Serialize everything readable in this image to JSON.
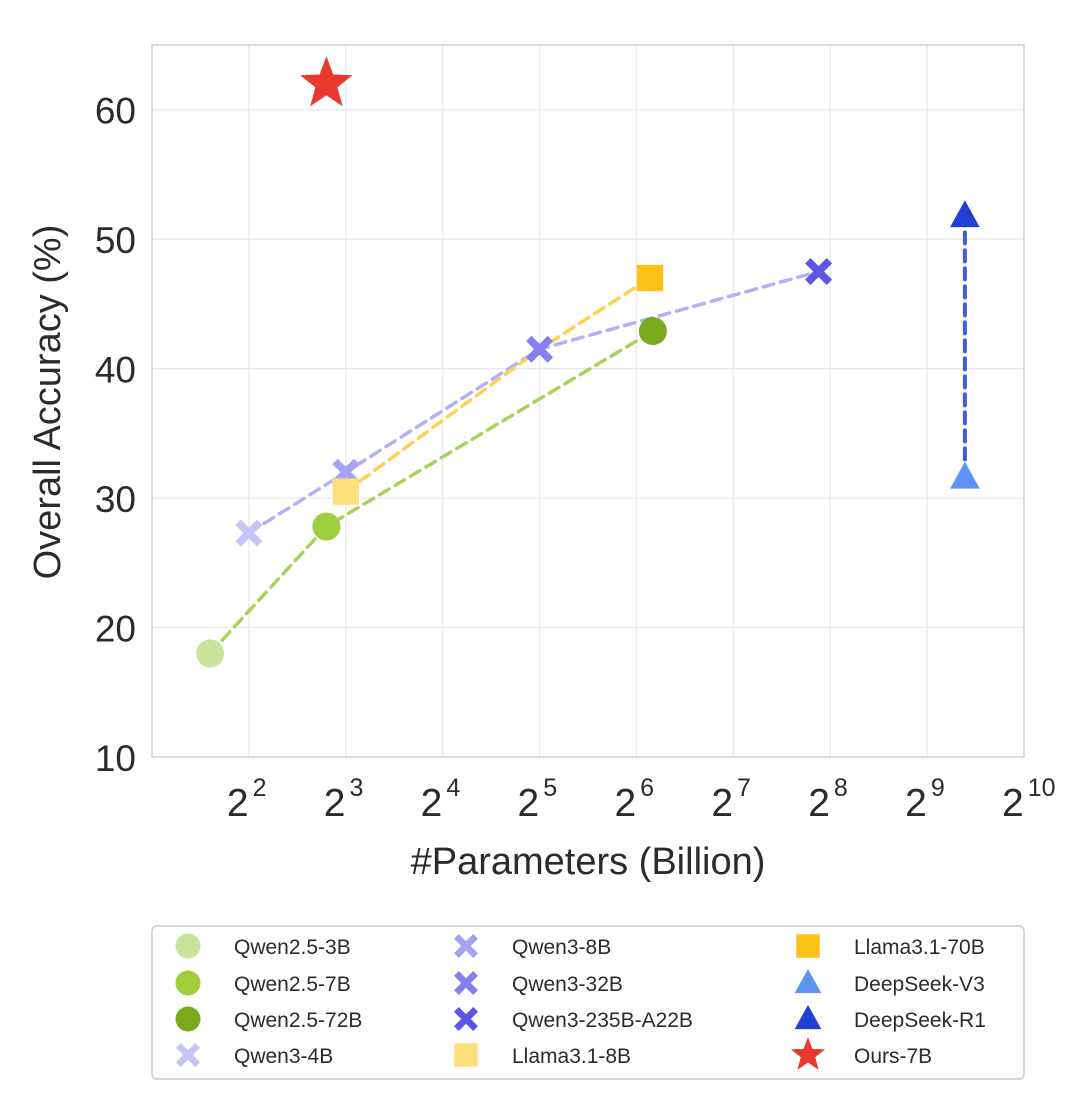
{
  "chart_data": {
    "type": "scatter",
    "title": "",
    "xlabel": "#Parameters (Billion)",
    "ylabel": "Overall Accuracy (%)",
    "x_scale": "log2",
    "x_exponent_range": [
      1,
      10
    ],
    "ylim": [
      10,
      65
    ],
    "y_ticks": [
      10,
      20,
      30,
      40,
      50,
      60
    ],
    "x_ticks": [
      {
        "base": "2",
        "exp": "2",
        "value": 2
      },
      {
        "base": "2",
        "exp": "3",
        "value": 3
      },
      {
        "base": "2",
        "exp": "4",
        "value": 4
      },
      {
        "base": "2",
        "exp": "5",
        "value": 5
      },
      {
        "base": "2",
        "exp": "6",
        "value": 6
      },
      {
        "base": "2",
        "exp": "7",
        "value": 7
      },
      {
        "base": "2",
        "exp": "8",
        "value": 8
      },
      {
        "base": "2",
        "exp": "9",
        "value": 9
      },
      {
        "base": "2",
        "exp": "10",
        "value": 10
      }
    ],
    "grid": true,
    "legend_position": "bottom",
    "series": [
      {
        "name": "Qwen2.5-3B",
        "marker": "circle",
        "color": "#c8e39a",
        "log2_params": 1.6,
        "accuracy": 18.0
      },
      {
        "name": "Qwen2.5-7B",
        "marker": "circle",
        "color": "#9fce3c",
        "log2_params": 2.8,
        "accuracy": 27.8
      },
      {
        "name": "Qwen2.5-72B",
        "marker": "circle",
        "color": "#7aab1e",
        "log2_params": 6.17,
        "accuracy": 42.9
      },
      {
        "name": "Qwen3-4B",
        "marker": "x",
        "color": "#c6c3f8",
        "log2_params": 2.0,
        "accuracy": 27.3
      },
      {
        "name": "Qwen3-8B",
        "marker": "x",
        "color": "#a6a3f5",
        "log2_params": 3.0,
        "accuracy": 32.0
      },
      {
        "name": "Qwen3-32B",
        "marker": "x",
        "color": "#8580ef",
        "log2_params": 5.0,
        "accuracy": 41.5
      },
      {
        "name": "Qwen3-235B-A22B",
        "marker": "x",
        "color": "#5d55e6",
        "log2_params": 7.88,
        "accuracy": 47.5
      },
      {
        "name": "Llama3.1-8B",
        "marker": "square",
        "color": "#fde07c",
        "log2_params": 3.0,
        "accuracy": 30.5
      },
      {
        "name": "Llama3.1-70B",
        "marker": "square",
        "color": "#fbc116",
        "log2_params": 6.14,
        "accuracy": 47.0
      },
      {
        "name": "DeepSeek-V3",
        "marker": "triangle",
        "color": "#5d93f2",
        "log2_params": 9.39,
        "accuracy": 31.6
      },
      {
        "name": "DeepSeek-R1",
        "marker": "triangle",
        "color": "#2240d4",
        "log2_params": 9.39,
        "accuracy": 51.8
      },
      {
        "name": "Ours-7B",
        "marker": "star",
        "color": "#e8392c",
        "log2_params": 2.8,
        "accuracy": 62.0
      }
    ],
    "trend_lines": [
      {
        "family": "Qwen2.5",
        "color": "#a9d15c",
        "points": [
          "Qwen2.5-3B",
          "Qwen2.5-7B",
          "Qwen2.5-72B"
        ]
      },
      {
        "family": "Qwen3",
        "color": "#b3b0f6",
        "points": [
          "Qwen3-4B",
          "Qwen3-8B",
          "Qwen3-32B",
          "Qwen3-235B-A22B"
        ]
      },
      {
        "family": "Llama3.1",
        "color": "#fcd155",
        "points": [
          "Llama3.1-8B",
          "Qwen3-32B",
          "Llama3.1-70B"
        ]
      },
      {
        "family": "DeepSeek",
        "color": "#3c5ed8",
        "points": [
          "DeepSeek-V3",
          "DeepSeek-R1"
        ]
      }
    ],
    "legend_columns": [
      [
        "Qwen2.5-3B",
        "Qwen2.5-7B",
        "Qwen2.5-72B",
        "Qwen3-4B"
      ],
      [
        "Qwen3-8B",
        "Qwen3-32B",
        "Qwen3-235B-A22B",
        "Llama3.1-8B"
      ],
      [
        "Llama3.1-70B",
        "DeepSeek-V3",
        "DeepSeek-R1",
        "Ours-7B"
      ]
    ]
  }
}
